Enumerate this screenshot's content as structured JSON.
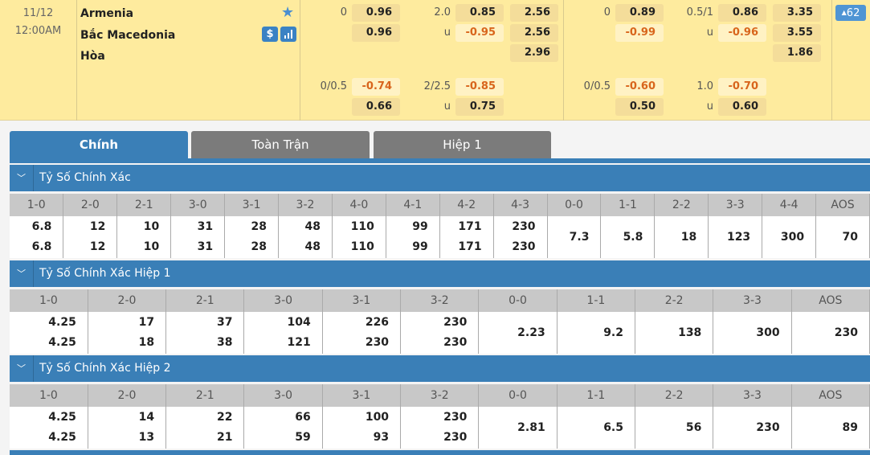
{
  "match": {
    "date": "11/12",
    "time": "12:00AM",
    "home": "Armenia",
    "away": "Bắc Macedonia",
    "draw": "Hòa",
    "dollar_icon": "$",
    "more_count": "62"
  },
  "odds": [
    {
      "col": "a_hdp",
      "row": 0,
      "label": "0",
      "value": "0.96",
      "neg": false
    },
    {
      "col": "a_hdp",
      "row": 1,
      "label": "",
      "value": "0.96",
      "neg": false
    },
    {
      "col": "a_hdp",
      "row": 3,
      "label": "0/0.5",
      "value": "-0.74",
      "neg": true
    },
    {
      "col": "a_hdp",
      "row": 4,
      "label": "",
      "value": "0.66",
      "neg": false
    },
    {
      "col": "a_ou",
      "row": 0,
      "label": "2.0",
      "value": "0.85",
      "neg": false
    },
    {
      "col": "a_ou",
      "row": 1,
      "label": "u",
      "value": "-0.95",
      "neg": true
    },
    {
      "col": "a_ou",
      "row": 3,
      "label": "2/2.5",
      "value": "-0.85",
      "neg": true
    },
    {
      "col": "a_ou",
      "row": 4,
      "label": "u",
      "value": "0.75",
      "neg": false
    },
    {
      "col": "a_1x2",
      "row": 0,
      "label": "",
      "value": "2.56",
      "neg": false
    },
    {
      "col": "a_1x2",
      "row": 1,
      "label": "",
      "value": "2.56",
      "neg": false
    },
    {
      "col": "a_1x2",
      "row": 2,
      "label": "",
      "value": "2.96",
      "neg": false
    },
    {
      "col": "b_hdp",
      "row": 0,
      "label": "0",
      "value": "0.89",
      "neg": false
    },
    {
      "col": "b_hdp",
      "row": 1,
      "label": "",
      "value": "-0.99",
      "neg": true
    },
    {
      "col": "b_hdp",
      "row": 3,
      "label": "0/0.5",
      "value": "-0.60",
      "neg": true
    },
    {
      "col": "b_hdp",
      "row": 4,
      "label": "",
      "value": "0.50",
      "neg": false
    },
    {
      "col": "b_ou",
      "row": 0,
      "label": "0.5/1",
      "value": "0.86",
      "neg": false
    },
    {
      "col": "b_ou",
      "row": 1,
      "label": "u",
      "value": "-0.96",
      "neg": true
    },
    {
      "col": "b_ou",
      "row": 3,
      "label": "1.0",
      "value": "-0.70",
      "neg": true
    },
    {
      "col": "b_ou",
      "row": 4,
      "label": "u",
      "value": "0.60",
      "neg": false
    },
    {
      "col": "b_1x2",
      "row": 0,
      "label": "",
      "value": "3.35",
      "neg": false
    },
    {
      "col": "b_1x2",
      "row": 1,
      "label": "",
      "value": "3.55",
      "neg": false
    },
    {
      "col": "b_1x2",
      "row": 2,
      "label": "",
      "value": "1.86",
      "neg": false
    }
  ],
  "tabs": [
    {
      "label": "Chính",
      "active": true
    },
    {
      "label": "Toàn Trận",
      "active": false
    },
    {
      "label": "Hiệp 1",
      "active": false
    }
  ],
  "sections": [
    {
      "title": "Tỷ Số Chính Xác",
      "headers": [
        "1-0",
        "2-0",
        "2-1",
        "3-0",
        "3-1",
        "3-2",
        "4-0",
        "4-1",
        "4-2",
        "4-3",
        "0-0",
        "1-1",
        "2-2",
        "3-3",
        "4-4",
        "AOS"
      ],
      "values": [
        [
          "6.8",
          "6.8"
        ],
        [
          "12",
          "12"
        ],
        [
          "10",
          "10"
        ],
        [
          "31",
          "31"
        ],
        [
          "28",
          "28"
        ],
        [
          "48",
          "48"
        ],
        [
          "110",
          "110"
        ],
        [
          "99",
          "99"
        ],
        [
          "171",
          "171"
        ],
        [
          "230",
          "230"
        ],
        [
          "7.3"
        ],
        [
          "5.8"
        ],
        [
          "18"
        ],
        [
          "123"
        ],
        [
          "300"
        ],
        [
          "70"
        ]
      ]
    },
    {
      "title": "Tỷ Số Chính Xác Hiệp 1",
      "headers": [
        "1-0",
        "2-0",
        "2-1",
        "3-0",
        "3-1",
        "3-2",
        "0-0",
        "1-1",
        "2-2",
        "3-3",
        "AOS"
      ],
      "values": [
        [
          "4.25",
          "4.25"
        ],
        [
          "17",
          "18"
        ],
        [
          "37",
          "38"
        ],
        [
          "104",
          "121"
        ],
        [
          "226",
          "230"
        ],
        [
          "230",
          "230"
        ],
        [
          "2.23"
        ],
        [
          "9.2"
        ],
        [
          "138"
        ],
        [
          "300"
        ],
        [
          "230"
        ]
      ]
    },
    {
      "title": "Tỷ Số Chính Xác Hiệp 2",
      "headers": [
        "1-0",
        "2-0",
        "2-1",
        "3-0",
        "3-1",
        "3-2",
        "0-0",
        "1-1",
        "2-2",
        "3-3",
        "AOS"
      ],
      "values": [
        [
          "4.25",
          "4.25"
        ],
        [
          "14",
          "13"
        ],
        [
          "22",
          "21"
        ],
        [
          "66",
          "59"
        ],
        [
          "100",
          "93"
        ],
        [
          "230",
          "230"
        ],
        [
          "2.81"
        ],
        [
          "6.5"
        ],
        [
          "56"
        ],
        [
          "230"
        ],
        [
          "89"
        ]
      ]
    }
  ],
  "colors": {
    "accent": "#3a7fb7",
    "negative": "#d8651c",
    "row_bg": "#feeb9e"
  }
}
